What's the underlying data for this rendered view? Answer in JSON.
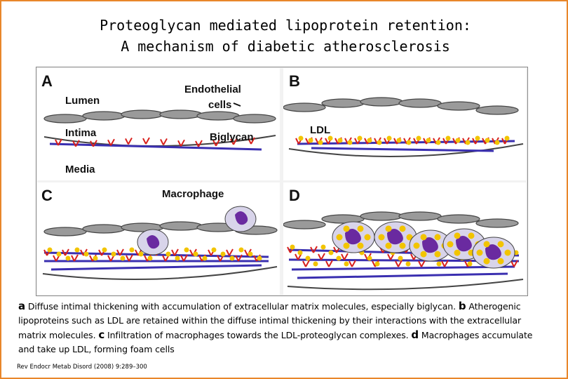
{
  "title": {
    "line1": "Proteoglycan mediated lipoprotein retention:",
    "line2": "A mechanism of diabetic atherosclerosis"
  },
  "panels": {
    "a": {
      "letter": "A",
      "lumen": "Lumen",
      "endothelial": "Endothelial",
      "cells": "cells",
      "intima": "Intima",
      "biglycan": "Biglycan",
      "media": "Media"
    },
    "b": {
      "letter": "B",
      "ldl": "LDL"
    },
    "c": {
      "letter": "C",
      "macrophage": "Macrophage"
    },
    "d": {
      "letter": "D"
    }
  },
  "caption": {
    "a_marker": "a",
    "a_text": "Diffuse intimal thickening with accumulation of extracellular matrix molecules, especially biglycan.",
    "b_marker": "b",
    "b_text": "Atherogenic lipoproteins such as LDL are retained within the diffuse intimal thickening by their interactions with the extracellular matrix molecules.",
    "c_marker": "c",
    "c_text": "Infiltration of macrophages towards the LDL-proteoglycan complexes.",
    "d_marker": "d",
    "d_text": "Macrophages accumulate and take up LDL, forming foam cells"
  },
  "reference": "Rev Endocr Metab Disord (2008) 9:289–300",
  "colors": {
    "border": "#e8862a",
    "fiber": "#3a2fb0",
    "biglycan": "#d8201c",
    "ldl": "#f2c400",
    "macrophage": "#d8d4ea",
    "nucleus": "#6a2aa0"
  }
}
